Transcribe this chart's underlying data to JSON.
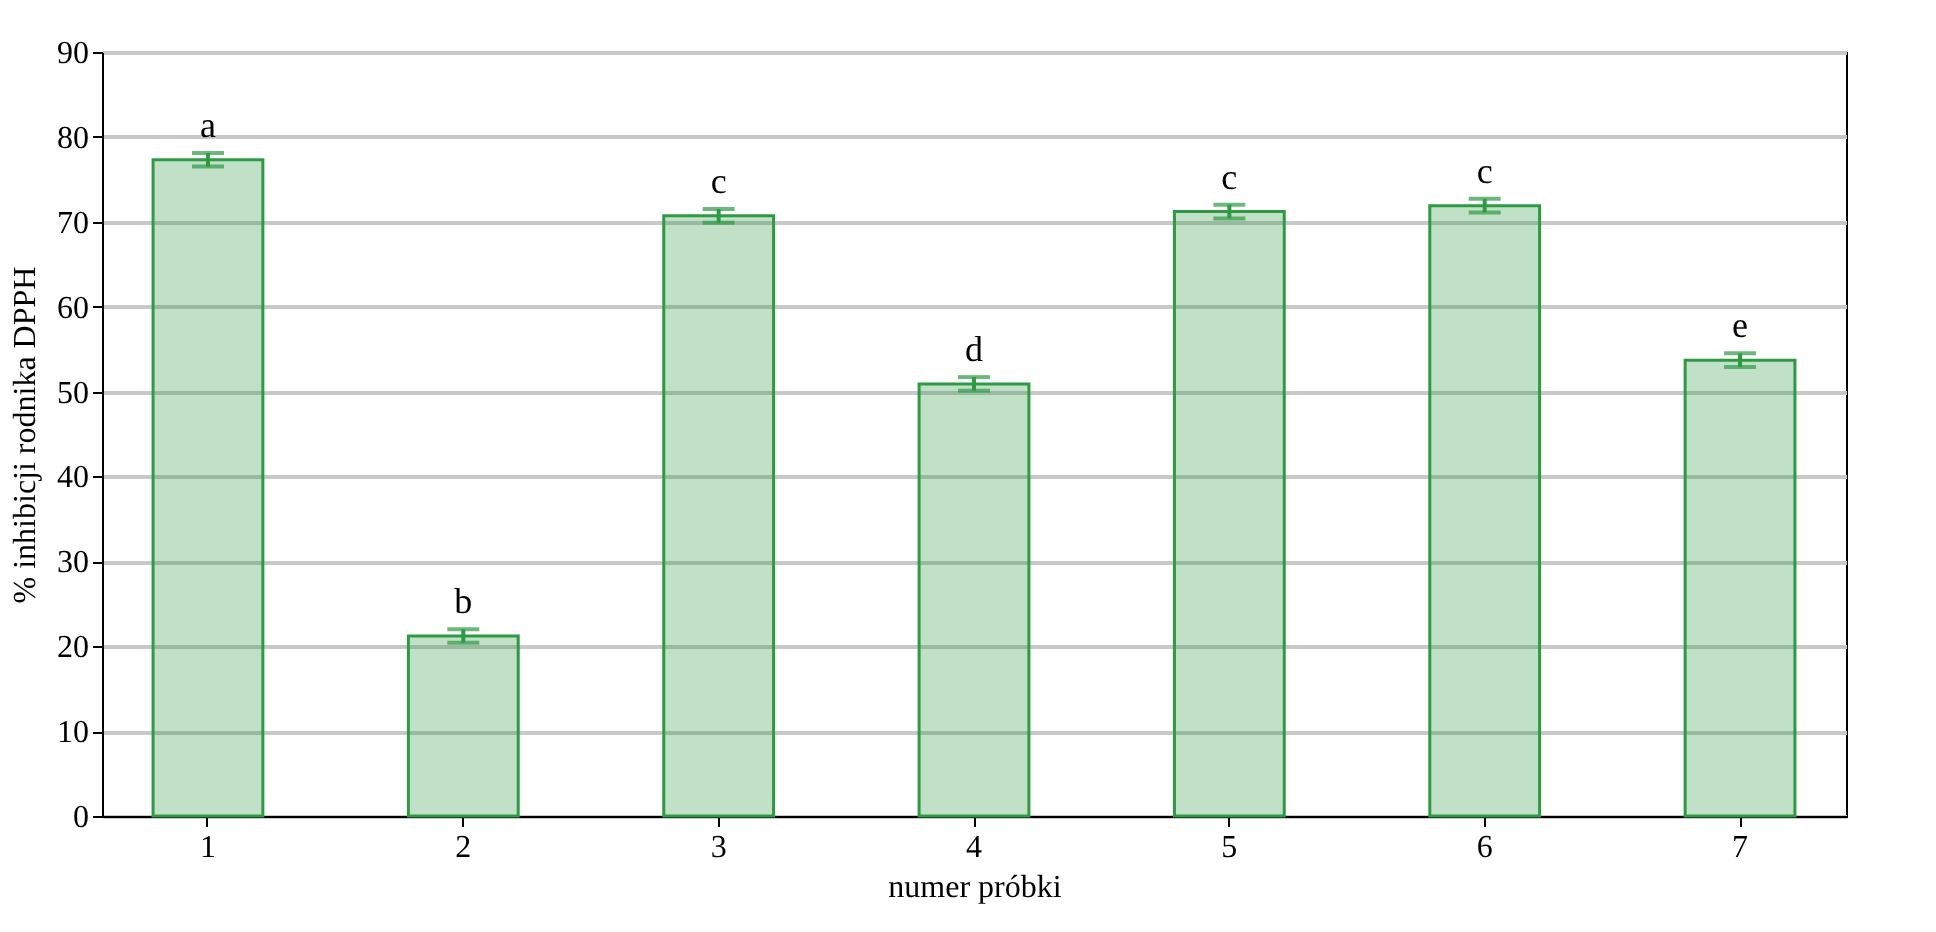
{
  "chart_data": {
    "type": "bar",
    "xlabel": "numer próbki",
    "ylabel": "% inhibicji rodnika DPPH",
    "categories": [
      "1",
      "2",
      "3",
      "4",
      "5",
      "6",
      "7"
    ],
    "values": [
      77.3,
      21.2,
      70.7,
      50.9,
      71.2,
      71.9,
      53.7
    ],
    "errors": [
      0.8,
      0.8,
      0.8,
      0.8,
      0.8,
      0.8,
      0.8
    ],
    "color": "#2e9a44",
    "ylim": [
      0,
      90
    ],
    "yticks": [
      0,
      10,
      20,
      30,
      40,
      50,
      60,
      70,
      80,
      90
    ],
    "grid": "y",
    "annotations": [
      {
        "text": "a",
        "x": "1",
        "y": 77.3
      },
      {
        "text": "b",
        "x": "2",
        "y": 21.2
      },
      {
        "text": "c",
        "x": "3",
        "y": 70.7
      },
      {
        "text": "d",
        "x": "4",
        "y": 50.9
      },
      {
        "text": "c",
        "x": "5",
        "y": 71.2
      },
      {
        "text": "c",
        "x": "6",
        "y": 71.9
      },
      {
        "text": "e",
        "x": "7",
        "y": 53.7
      }
    ]
  }
}
